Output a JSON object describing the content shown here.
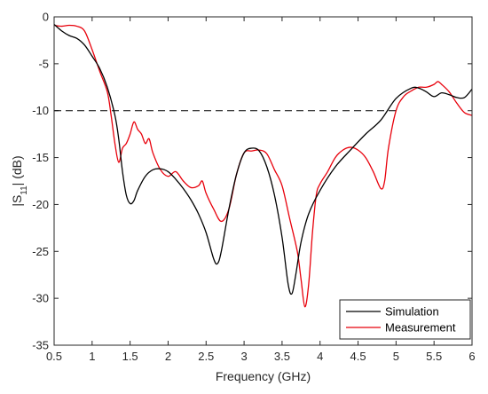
{
  "chart_data": {
    "type": "line",
    "xlabel": "Frequency (GHz)",
    "ylabel": "|S",
    "ylabel_sub": "11",
    "ylabel_suffix": "| (dB)",
    "xlim": [
      0.5,
      6
    ],
    "ylim": [
      -35,
      0
    ],
    "x_ticks": [
      0.5,
      1,
      1.5,
      2,
      2.5,
      3,
      3.5,
      4,
      4.5,
      5,
      5.5,
      6
    ],
    "x_tick_labels": [
      "0.5",
      "1",
      "1.5",
      "2",
      "2.5",
      "3",
      "3.5",
      "4",
      "4.5",
      "5",
      "5.5",
      "6"
    ],
    "y_ticks": [
      0,
      -5,
      -10,
      -15,
      -20,
      -25,
      -30,
      -35
    ],
    "y_tick_labels": [
      "0",
      "-5",
      "-10",
      "-15",
      "-20",
      "-25",
      "-30",
      "-35"
    ],
    "grid": false,
    "legend_position": "bottom-right",
    "reference_line": {
      "y": -10,
      "x_start": 0.5,
      "x_end": 5.0,
      "style": "dashed",
      "color": "#000000"
    },
    "series": [
      {
        "name": "Simulation",
        "color": "#000000",
        "points": [
          [
            0.5,
            -0.8
          ],
          [
            0.6,
            -1.5
          ],
          [
            0.7,
            -2.0
          ],
          [
            0.8,
            -2.3
          ],
          [
            0.9,
            -3.0
          ],
          [
            1.0,
            -4.2
          ],
          [
            1.1,
            -5.5
          ],
          [
            1.2,
            -7.5
          ],
          [
            1.3,
            -10.5
          ],
          [
            1.35,
            -13.0
          ],
          [
            1.4,
            -16.5
          ],
          [
            1.45,
            -19.0
          ],
          [
            1.5,
            -19.9
          ],
          [
            1.55,
            -19.6
          ],
          [
            1.6,
            -18.5
          ],
          [
            1.7,
            -17.0
          ],
          [
            1.8,
            -16.3
          ],
          [
            1.9,
            -16.2
          ],
          [
            2.0,
            -16.5
          ],
          [
            2.1,
            -17.3
          ],
          [
            2.2,
            -18.3
          ],
          [
            2.3,
            -19.5
          ],
          [
            2.4,
            -21.0
          ],
          [
            2.5,
            -23.0
          ],
          [
            2.6,
            -25.8
          ],
          [
            2.65,
            -26.3
          ],
          [
            2.7,
            -25.0
          ],
          [
            2.8,
            -20.5
          ],
          [
            2.9,
            -16.8
          ],
          [
            3.0,
            -14.5
          ],
          [
            3.1,
            -14.0
          ],
          [
            3.2,
            -14.3
          ],
          [
            3.3,
            -16.0
          ],
          [
            3.4,
            -19.0
          ],
          [
            3.5,
            -23.5
          ],
          [
            3.58,
            -28.5
          ],
          [
            3.63,
            -29.5
          ],
          [
            3.68,
            -27.5
          ],
          [
            3.75,
            -24.0
          ],
          [
            3.85,
            -21.0
          ],
          [
            4.0,
            -18.5
          ],
          [
            4.2,
            -16.0
          ],
          [
            4.4,
            -14.2
          ],
          [
            4.6,
            -12.5
          ],
          [
            4.8,
            -11.0
          ],
          [
            5.0,
            -8.7
          ],
          [
            5.2,
            -7.6
          ],
          [
            5.3,
            -7.6
          ],
          [
            5.4,
            -8.0
          ],
          [
            5.5,
            -8.5
          ],
          [
            5.6,
            -8.1
          ],
          [
            5.7,
            -8.3
          ],
          [
            5.8,
            -8.6
          ],
          [
            5.9,
            -8.6
          ],
          [
            6.0,
            -7.7
          ]
        ]
      },
      {
        "name": "Measurement",
        "color": "#e8000b",
        "points": [
          [
            0.5,
            -0.9
          ],
          [
            0.6,
            -1.0
          ],
          [
            0.7,
            -0.9
          ],
          [
            0.8,
            -1.0
          ],
          [
            0.9,
            -1.5
          ],
          [
            1.0,
            -3.5
          ],
          [
            1.1,
            -5.8
          ],
          [
            1.2,
            -8.0
          ],
          [
            1.25,
            -10.5
          ],
          [
            1.3,
            -13.5
          ],
          [
            1.35,
            -15.5
          ],
          [
            1.4,
            -14.0
          ],
          [
            1.45,
            -13.5
          ],
          [
            1.5,
            -12.5
          ],
          [
            1.55,
            -11.2
          ],
          [
            1.6,
            -12.0
          ],
          [
            1.65,
            -12.5
          ],
          [
            1.7,
            -13.5
          ],
          [
            1.75,
            -13.0
          ],
          [
            1.8,
            -14.5
          ],
          [
            1.9,
            -16.3
          ],
          [
            2.0,
            -17.0
          ],
          [
            2.1,
            -16.5
          ],
          [
            2.2,
            -17.5
          ],
          [
            2.3,
            -18.2
          ],
          [
            2.4,
            -18.0
          ],
          [
            2.45,
            -17.5
          ],
          [
            2.5,
            -18.8
          ],
          [
            2.6,
            -20.5
          ],
          [
            2.7,
            -21.8
          ],
          [
            2.8,
            -20.5
          ],
          [
            2.9,
            -16.8
          ],
          [
            3.0,
            -14.5
          ],
          [
            3.1,
            -14.3
          ],
          [
            3.2,
            -14.2
          ],
          [
            3.3,
            -14.6
          ],
          [
            3.4,
            -16.3
          ],
          [
            3.5,
            -18.0
          ],
          [
            3.6,
            -21.5
          ],
          [
            3.7,
            -25.0
          ],
          [
            3.75,
            -28.0
          ],
          [
            3.8,
            -30.9
          ],
          [
            3.85,
            -28.5
          ],
          [
            3.9,
            -23.0
          ],
          [
            3.95,
            -19.0
          ],
          [
            4.0,
            -17.8
          ],
          [
            4.1,
            -16.5
          ],
          [
            4.2,
            -15.0
          ],
          [
            4.3,
            -14.2
          ],
          [
            4.4,
            -13.9
          ],
          [
            4.5,
            -14.2
          ],
          [
            4.6,
            -15.0
          ],
          [
            4.7,
            -16.5
          ],
          [
            4.8,
            -18.3
          ],
          [
            4.85,
            -17.5
          ],
          [
            4.9,
            -14.0
          ],
          [
            5.0,
            -10.0
          ],
          [
            5.1,
            -8.5
          ],
          [
            5.2,
            -7.9
          ],
          [
            5.3,
            -7.5
          ],
          [
            5.4,
            -7.5
          ],
          [
            5.5,
            -7.2
          ],
          [
            5.55,
            -6.9
          ],
          [
            5.6,
            -7.2
          ],
          [
            5.7,
            -8.0
          ],
          [
            5.8,
            -9.2
          ],
          [
            5.9,
            -10.2
          ],
          [
            6.0,
            -10.5
          ]
        ]
      }
    ]
  }
}
